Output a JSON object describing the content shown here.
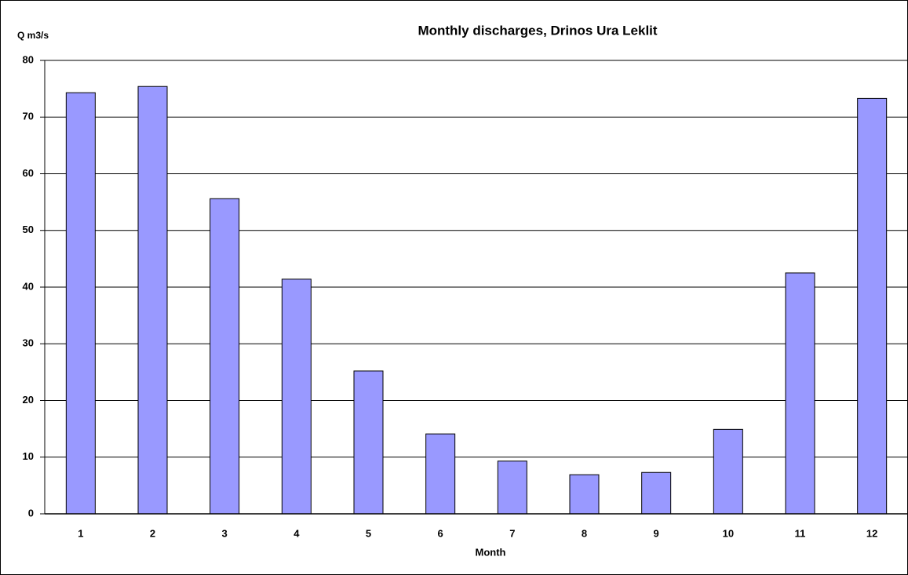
{
  "chart_data": {
    "type": "bar",
    "title": "Monthly discharges, Drinos Ura Leklit",
    "y_label": "Q m3/s",
    "x_label": "Month",
    "categories": [
      "1",
      "2",
      "3",
      "4",
      "5",
      "6",
      "7",
      "8",
      "9",
      "10",
      "11",
      "12"
    ],
    "values": [
      74.3,
      75.4,
      55.6,
      41.4,
      25.2,
      14.1,
      9.3,
      6.9,
      7.3,
      14.9,
      42.5,
      73.3
    ],
    "color": "#9999ff",
    "ylim": [
      0,
      80
    ],
    "yticks": [
      0,
      10,
      20,
      30,
      40,
      50,
      60,
      70,
      80
    ],
    "grid": true
  }
}
